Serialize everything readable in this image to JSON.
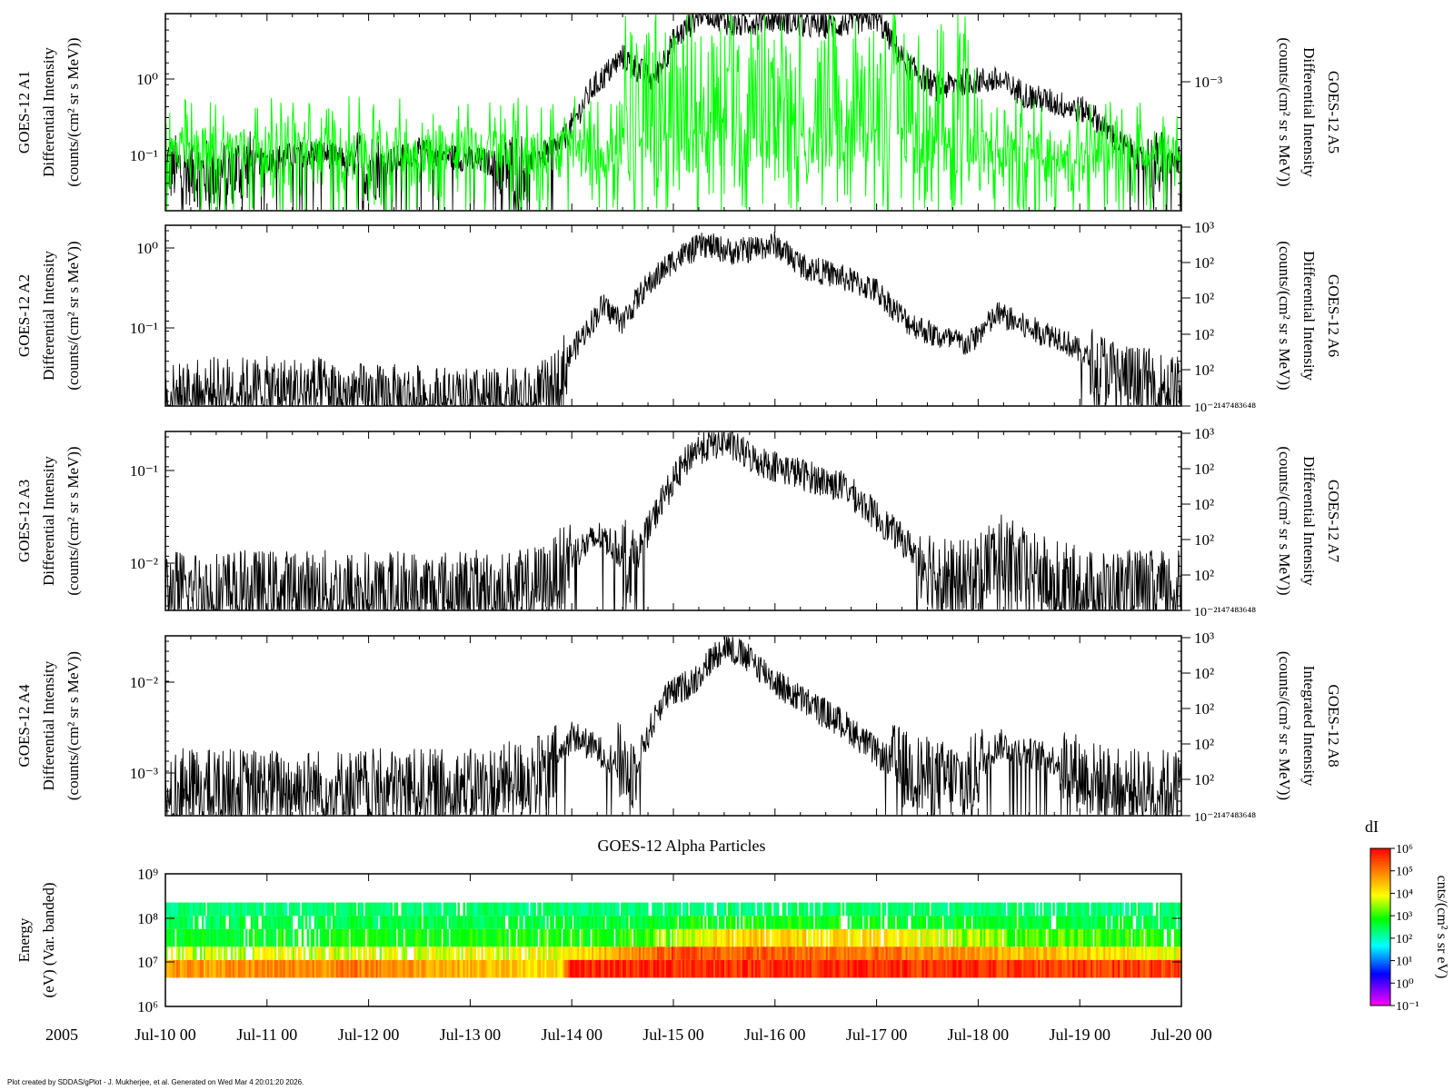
{
  "figure": {
    "footer": "Plot created by SDDAS/gPlot - J. Mukherjee, et al.  Generated on Wed Mar 4 20:01:20 2026.",
    "year_label": "2005",
    "x_ticks": [
      "Jul-10 00",
      "Jul-11 00",
      "Jul-12 00",
      "Jul-13 00",
      "Jul-14 00",
      "Jul-15 00",
      "Jul-16 00",
      "Jul-17 00",
      "Jul-18 00",
      "Jul-19 00",
      "Jul-20 00"
    ],
    "spectrogram_title": "GOES-12 Alpha Particles",
    "colorbar": {
      "title": "dI",
      "unit_label": "cnts/(cm² s sr eV)",
      "ticks": [
        "10⁶",
        "10⁵",
        "10⁴",
        "10³",
        "10²",
        "10¹",
        "10⁰",
        "10⁻¹"
      ],
      "colors": [
        "#ff0000",
        "#ff8000",
        "#ffff00",
        "#00ff00",
        "#00ffff",
        "#0000ff",
        "#ff00ff"
      ]
    }
  },
  "chart_data": [
    {
      "type": "line",
      "x_range": [
        "2005-07-10 00:00",
        "2005-07-20 00:00"
      ],
      "left_axis": {
        "label_lines": [
          "GOES-12 A1",
          "Differential Intensity",
          "(counts/(cm² sr s MeV))"
        ],
        "ticks": [
          "10⁰",
          "10⁻¹"
        ],
        "scale": "log"
      },
      "right_axis": {
        "label_lines": [
          "GOES-12 A5",
          "Differential Intensity",
          "(counts/(cm² sr s MeV))"
        ],
        "ticks": [
          "10⁻³"
        ],
        "scale": "log"
      },
      "series": [
        {
          "color": "#000000",
          "x_days": [
            0,
            0.5,
            1,
            1.5,
            2,
            2.5,
            3,
            3.5,
            3.9,
            4.2,
            4.5,
            4.8,
            5.0,
            5.3,
            5.6,
            6.0,
            6.3,
            6.6,
            7.0,
            7.3,
            7.6,
            7.9,
            8.2,
            8.5,
            8.8,
            9.1,
            9.4,
            9.7,
            10
          ],
          "log10_y": [
            -1.1,
            -1.2,
            -1.0,
            -0.9,
            -1.1,
            -0.9,
            -1.0,
            -1.1,
            -0.8,
            -0.1,
            0.3,
            0.0,
            0.5,
            0.9,
            0.7,
            0.8,
            0.7,
            0.7,
            0.8,
            0.2,
            -0.1,
            0.0,
            0.0,
            -0.2,
            -0.3,
            -0.4,
            -0.8,
            -1.1,
            -1.0
          ]
        },
        {
          "color": "#00ff00",
          "x_days": [
            0,
            10
          ],
          "log10_y": [
            -1.0,
            -1.0
          ]
        }
      ]
    },
    {
      "type": "line",
      "x_range": [
        "2005-07-10 00:00",
        "2005-07-20 00:00"
      ],
      "left_axis": {
        "label_lines": [
          "GOES-12 A2",
          "Differential Intensity",
          "(counts/(cm² sr s MeV))"
        ],
        "ticks": [
          "10⁰",
          "10⁻¹"
        ],
        "scale": "log"
      },
      "right_axis": {
        "label_lines": [
          "GOES-12 A6",
          "Differential Intensity",
          "(counts/(cm² sr s MeV))"
        ],
        "ticks": [
          "10³",
          "10²",
          "10²",
          "10²",
          "10²",
          "10⁻²¹⁴⁷⁴⁸³⁶⁴⁸"
        ],
        "scale": "log"
      },
      "series": [
        {
          "color": "#000000",
          "x_days": [
            0,
            0.5,
            1,
            1.5,
            2,
            2.5,
            3,
            3.5,
            3.8,
            4.0,
            4.3,
            4.5,
            4.7,
            5.0,
            5.3,
            5.6,
            6.0,
            6.3,
            6.6,
            7.0,
            7.3,
            7.6,
            7.9,
            8.2,
            8.5,
            8.8,
            9.1,
            9.4,
            9.7,
            10
          ],
          "log10_y": [
            -1.9,
            -1.8,
            -1.8,
            -1.8,
            -1.9,
            -1.9,
            -1.95,
            -1.95,
            -1.8,
            -1.3,
            -0.7,
            -0.9,
            -0.5,
            -0.1,
            0.1,
            0.0,
            0.1,
            -0.2,
            -0.3,
            -0.5,
            -0.9,
            -1.1,
            -1.2,
            -0.8,
            -1.0,
            -1.1,
            -1.4,
            -1.6,
            -1.7,
            -1.8
          ]
        }
      ]
    },
    {
      "type": "line",
      "x_range": [
        "2005-07-10 00:00",
        "2005-07-20 00:00"
      ],
      "left_axis": {
        "label_lines": [
          "GOES-12 A3",
          "Differential Intensity",
          "(counts/(cm² sr s MeV))"
        ],
        "ticks": [
          "10⁻¹",
          "10⁻²"
        ],
        "scale": "log"
      },
      "right_axis": {
        "label_lines": [
          "GOES-12 A7",
          "Differential Intensity",
          "(counts/(cm² sr s MeV))"
        ],
        "ticks": [
          "10³",
          "10²",
          "10²",
          "10²",
          "10²",
          "10⁻²¹⁴⁷⁴⁸³⁶⁴⁸"
        ],
        "scale": "log"
      },
      "series": [
        {
          "color": "#000000",
          "x_days": [
            0,
            0.5,
            1,
            1.5,
            2,
            2.5,
            3,
            3.5,
            3.8,
            4.0,
            4.3,
            4.6,
            4.9,
            5.2,
            5.5,
            5.8,
            6.1,
            6.4,
            6.7,
            7.0,
            7.3,
            7.6,
            7.9,
            8.2,
            8.5,
            8.8,
            9.1,
            9.4,
            9.7,
            10
          ],
          "log10_y": [
            -2.3,
            -2.3,
            -2.3,
            -2.3,
            -2.3,
            -2.3,
            -2.3,
            -2.3,
            -2.2,
            -1.9,
            -1.7,
            -2.0,
            -1.3,
            -0.8,
            -0.7,
            -0.9,
            -1.0,
            -1.1,
            -1.2,
            -1.5,
            -1.8,
            -2.1,
            -2.2,
            -1.9,
            -2.1,
            -2.2,
            -2.3,
            -2.3,
            -2.3,
            -2.3
          ]
        }
      ]
    },
    {
      "type": "line",
      "x_range": [
        "2005-07-10 00:00",
        "2005-07-20 00:00"
      ],
      "left_axis": {
        "label_lines": [
          "GOES-12 A4",
          "Differential Intensity",
          "(counts/(cm² sr s MeV))"
        ],
        "ticks": [
          "10⁻²",
          "10⁻³"
        ],
        "scale": "log"
      },
      "right_axis": {
        "label_lines": [
          "GOES-12 A8",
          "Integrated Intensity",
          "(counts/(cm² sr s MeV))"
        ],
        "ticks": [
          "10³",
          "10²",
          "10²",
          "10²",
          "10²",
          "10⁻²¹⁴⁷⁴⁸³⁶⁴⁸"
        ],
        "scale": "log"
      },
      "series": [
        {
          "color": "#000000",
          "x_days": [
            0,
            0.5,
            1,
            1.5,
            2,
            2.5,
            3,
            3.5,
            3.8,
            4.0,
            4.3,
            4.6,
            4.9,
            5.2,
            5.5,
            5.8,
            6.1,
            6.4,
            6.7,
            7.0,
            7.3,
            7.6,
            7.9,
            8.2,
            8.5,
            8.8,
            9.1,
            9.4,
            9.7,
            10
          ],
          "log10_y": [
            -3.2,
            -3.2,
            -3.2,
            -3.2,
            -3.2,
            -3.2,
            -3.2,
            -3.1,
            -3.0,
            -2.6,
            -2.8,
            -3.0,
            -2.2,
            -2.0,
            -1.6,
            -1.8,
            -2.1,
            -2.3,
            -2.5,
            -2.8,
            -3.0,
            -3.1,
            -3.1,
            -2.7,
            -2.8,
            -2.9,
            -3.1,
            -3.2,
            -3.2,
            -3.2
          ]
        }
      ]
    },
    {
      "type": "heatmap",
      "title": "GOES-12 Alpha Particles",
      "x_range": [
        "2005-07-10 00:00",
        "2005-07-20 00:00"
      ],
      "y_axis": {
        "label_lines": [
          "Energy",
          "(eV) (Var. banded)"
        ],
        "ticks": [
          "10⁹",
          "10⁸",
          "10⁷",
          "10⁶"
        ],
        "scale": "log",
        "range": [
          1000000,
          1000000000
        ]
      },
      "colorbar": {
        "label": "dI",
        "unit": "cnts/(cm² s sr eV)",
        "scale": "log",
        "range": [
          0.1,
          1000000
        ]
      },
      "bands": [
        {
          "energy_log10": [
            8.05,
            8.35
          ],
          "x_days": [
            0,
            10
          ],
          "log10_value": [
            3.0,
            3.0
          ]
        },
        {
          "energy_log10": [
            7.75,
            8.05
          ],
          "x_days": [
            0,
            4.5,
            5.5,
            8,
            10
          ],
          "log10_value": [
            3.2,
            3.3,
            3.6,
            3.4,
            3.2
          ]
        },
        {
          "energy_log10": [
            7.35,
            7.75
          ],
          "x_days": [
            0,
            4.5,
            5.5,
            7,
            8,
            10
          ],
          "log10_value": [
            3.4,
            3.6,
            4.6,
            4.5,
            4.0,
            3.5
          ]
        },
        {
          "energy_log10": [
            7.05,
            7.35
          ],
          "x_days": [
            0,
            3.9,
            5,
            7,
            8.5,
            10
          ],
          "log10_value": [
            4.2,
            4.3,
            5.5,
            5.3,
            4.8,
            4.3
          ]
        },
        {
          "energy_log10": [
            6.65,
            7.05
          ],
          "x_days": [
            0,
            2,
            3.9,
            4.0,
            10
          ],
          "log10_value": [
            5.0,
            5.2,
            4.5,
            5.8,
            5.6
          ]
        }
      ]
    }
  ]
}
